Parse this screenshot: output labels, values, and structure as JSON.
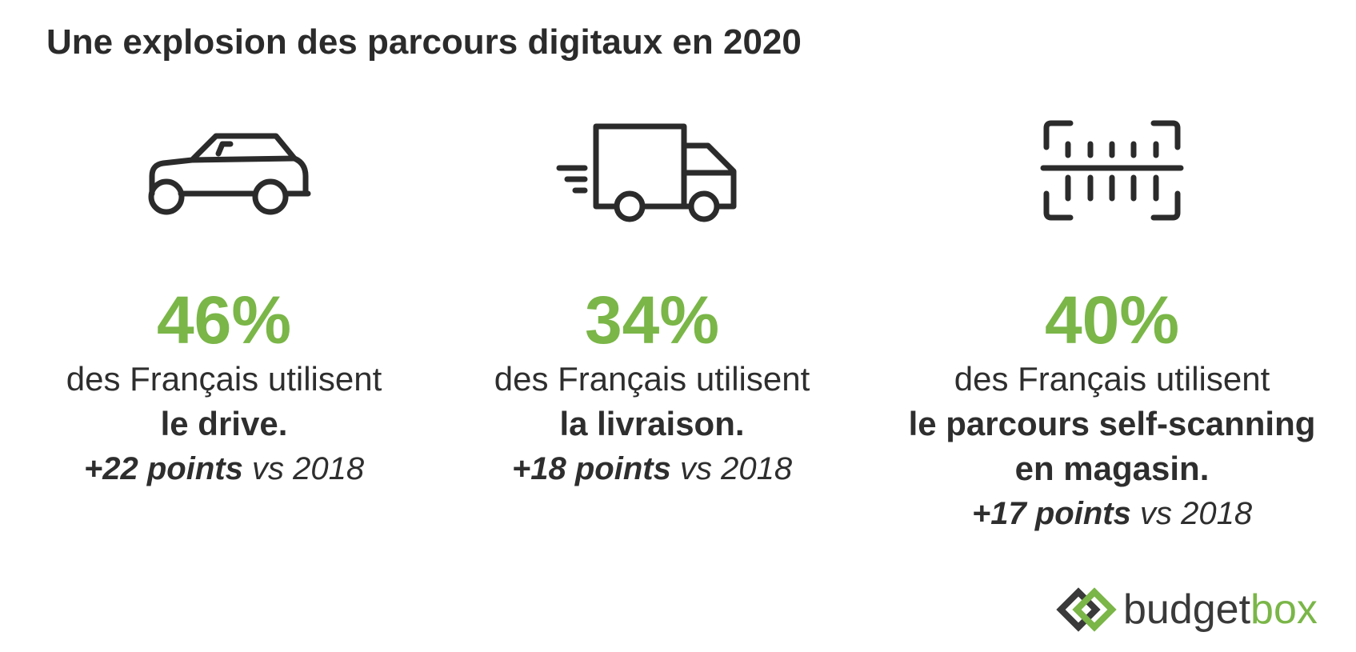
{
  "title": "Une explosion des parcours digitaux en 2020",
  "colors": {
    "accent": "#7ab648",
    "text": "#2e2e2e"
  },
  "stats": [
    {
      "icon": "car-icon",
      "percent": "46%",
      "line1": "des Français utilisent",
      "line2": "le drive.",
      "line3": "",
      "delta_bold": "+22 points",
      "delta_rest": " vs 2018"
    },
    {
      "icon": "delivery-truck-icon",
      "percent": "34%",
      "line1": "des Français utilisent",
      "line2": "la livraison.",
      "line3": "",
      "delta_bold": "+18 points",
      "delta_rest": " vs 2018"
    },
    {
      "icon": "barcode-scan-icon",
      "percent": "40%",
      "line1": "des Français utilisent",
      "line2": "le parcours self-scanning",
      "line3": "en magasin.",
      "delta_bold": "+17 points",
      "delta_rest": " vs 2018"
    }
  ],
  "logo": {
    "part1": "budget",
    "part2": "box"
  }
}
